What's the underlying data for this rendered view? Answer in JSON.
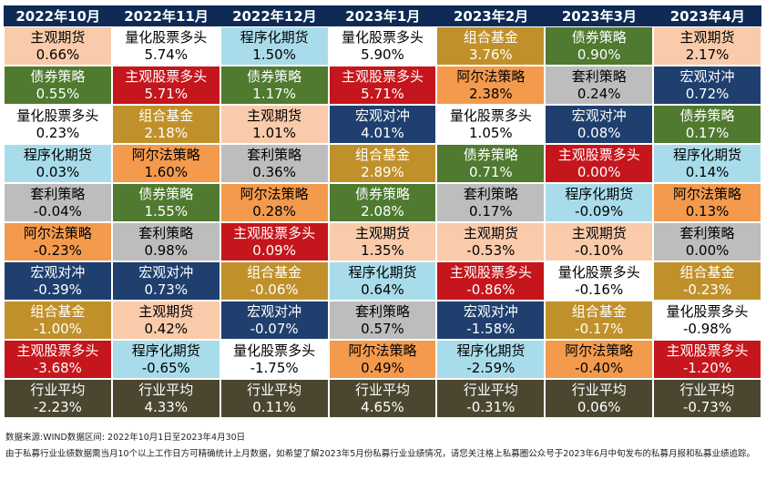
{
  "chart_data": {
    "type": "table",
    "columns": [
      "2022年10月",
      "2022年11月",
      "2022年12月",
      "2023年1月",
      "2023年2月",
      "2023年3月",
      "2023年4月"
    ],
    "rows": [
      [
        [
          "主观期货",
          "0.66%"
        ],
        [
          "量化股票多头",
          "5.74%"
        ],
        [
          "程序化期货",
          "1.50%"
        ],
        [
          "量化股票多头",
          "5.90%"
        ],
        [
          "组合基金",
          "3.76%"
        ],
        [
          "债券策略",
          "0.90%"
        ],
        [
          "主观期货",
          "2.17%"
        ]
      ],
      [
        [
          "债券策略",
          "0.55%"
        ],
        [
          "主观股票多头",
          "5.71%"
        ],
        [
          "债券策略",
          "1.17%"
        ],
        [
          "主观股票多头",
          "5.71%"
        ],
        [
          "阿尔法策略",
          "2.38%"
        ],
        [
          "套利策略",
          "0.24%"
        ],
        [
          "宏观对冲",
          "0.72%"
        ]
      ],
      [
        [
          "量化股票多头",
          "0.23%"
        ],
        [
          "组合基金",
          "2.18%"
        ],
        [
          "主观期货",
          "1.01%"
        ],
        [
          "宏观对冲",
          "4.01%"
        ],
        [
          "量化股票多头",
          "1.05%"
        ],
        [
          "宏观对冲",
          "0.08%"
        ],
        [
          "债券策略",
          "0.17%"
        ]
      ],
      [
        [
          "程序化期货",
          "0.03%"
        ],
        [
          "阿尔法策略",
          "1.60%"
        ],
        [
          "套利策略",
          "0.36%"
        ],
        [
          "组合基金",
          "2.89%"
        ],
        [
          "债券策略",
          "0.71%"
        ],
        [
          "主观股票多头",
          "0.00%"
        ],
        [
          "程序化期货",
          "0.14%"
        ]
      ],
      [
        [
          "套利策略",
          "-0.04%"
        ],
        [
          "债券策略",
          "1.55%"
        ],
        [
          "阿尔法策略",
          "0.28%"
        ],
        [
          "债券策略",
          "2.08%"
        ],
        [
          "套利策略",
          "0.17%"
        ],
        [
          "程序化期货",
          "-0.09%"
        ],
        [
          "阿尔法策略",
          "0.13%"
        ]
      ],
      [
        [
          "阿尔法策略",
          "-0.23%"
        ],
        [
          "套利策略",
          "0.98%"
        ],
        [
          "主观股票多头",
          "0.09%"
        ],
        [
          "主观期货",
          "1.35%"
        ],
        [
          "主观期货",
          "-0.53%"
        ],
        [
          "主观期货",
          "-0.10%"
        ],
        [
          "套利策略",
          "0.00%"
        ]
      ],
      [
        [
          "宏观对冲",
          "-0.39%"
        ],
        [
          "宏观对冲",
          "0.73%"
        ],
        [
          "组合基金",
          "-0.06%"
        ],
        [
          "程序化期货",
          "0.64%"
        ],
        [
          "主观股票多头",
          "-0.86%"
        ],
        [
          "量化股票多头",
          "-0.16%"
        ],
        [
          "组合基金",
          "-0.23%"
        ]
      ],
      [
        [
          "组合基金",
          "-1.00%"
        ],
        [
          "主观期货",
          "0.42%"
        ],
        [
          "宏观对冲",
          "-0.07%"
        ],
        [
          "套利策略",
          "0.57%"
        ],
        [
          "宏观对冲",
          "-1.58%"
        ],
        [
          "组合基金",
          "-0.17%"
        ],
        [
          "量化股票多头",
          "-0.98%"
        ]
      ],
      [
        [
          "主观股票多头",
          "-3.68%"
        ],
        [
          "程序化期货",
          "-0.65%"
        ],
        [
          "量化股票多头",
          "-1.75%"
        ],
        [
          "阿尔法策略",
          "0.49%"
        ],
        [
          "程序化期货",
          "-2.59%"
        ],
        [
          "阿尔法策略",
          "-0.40%"
        ],
        [
          "主观股票多头",
          "-1.20%"
        ]
      ],
      [
        [
          "行业平均",
          "-2.23%"
        ],
        [
          "行业平均",
          "4.33%"
        ],
        [
          "行业平均",
          "0.11%"
        ],
        [
          "行业平均",
          "4.65%"
        ],
        [
          "行业平均",
          "-0.31%"
        ],
        [
          "行业平均",
          "0.06%"
        ],
        [
          "行业平均",
          "-0.73%"
        ]
      ]
    ],
    "category_colors": {
      "主观期货": {
        "bg": "#f9cbaa",
        "fg": "#000000"
      },
      "量化股票多头": {
        "bg": "#ffffff",
        "fg": "#000000"
      },
      "程序化期货": {
        "bg": "#a9dcea",
        "fg": "#000000"
      },
      "组合基金": {
        "bg": "#c0912b",
        "fg": "#ffffff"
      },
      "债券策略": {
        "bg": "#4f7a2f",
        "fg": "#ffffff"
      },
      "主观股票多头": {
        "bg": "#c4161c",
        "fg": "#ffffff"
      },
      "阿尔法策略": {
        "bg": "#f39a4d",
        "fg": "#000000"
      },
      "套利策略": {
        "bg": "#bdbdbd",
        "fg": "#000000"
      },
      "宏观对冲": {
        "bg": "#1f3f6e",
        "fg": "#ffffff"
      },
      "行业平均": {
        "bg": "#4a4630",
        "fg": "#ffffff"
      }
    },
    "header_color": "#0e2a55"
  },
  "notes": {
    "source": "数据来源:WIND数据区间: 2022年10月1日至2023年4月30日",
    "disclaimer": "由于私募行业业绩数据需当月10个以上工作日方可精确统计上月数据，如希望了解2023年5月份私募行业业绩情况，请您关注格上私募圈公众号于2023年6月中旬发布的私募月报和私募业绩追踪。"
  }
}
